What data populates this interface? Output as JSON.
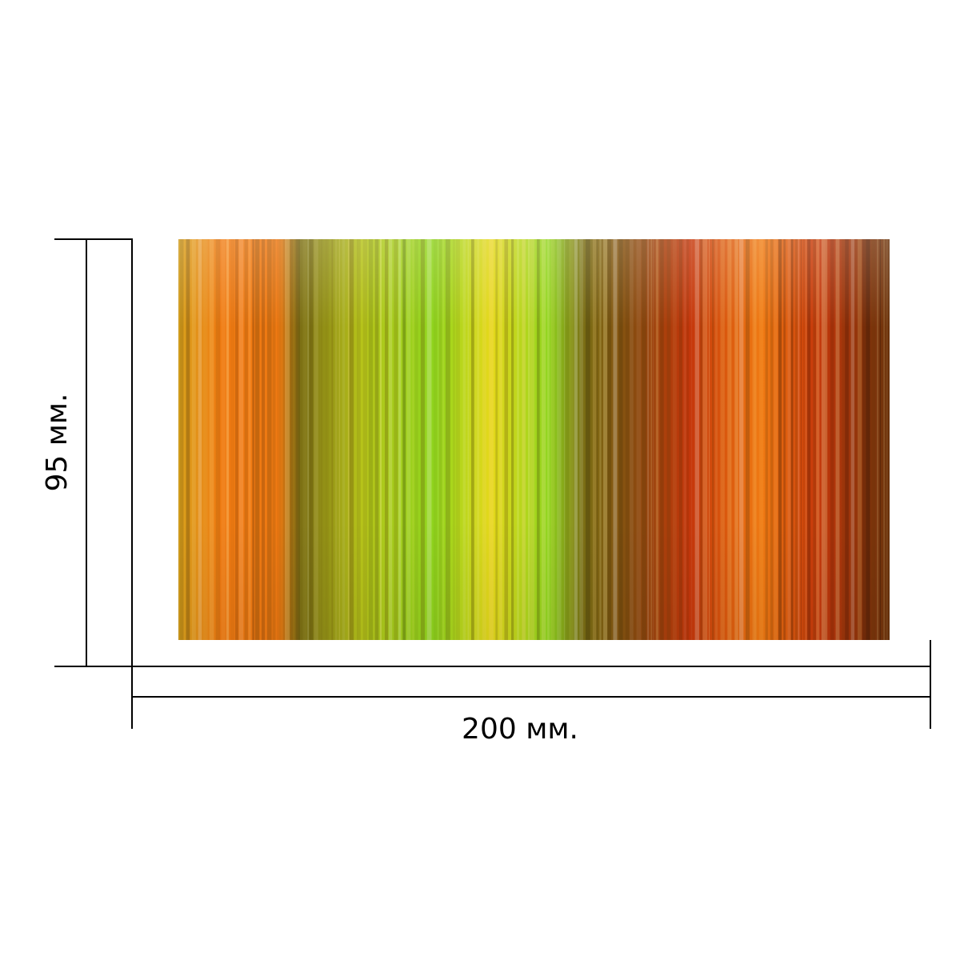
{
  "dimensions": {
    "width_label": "200 мм.",
    "height_label": "95 мм."
  },
  "tile": {
    "pattern": "vertical-color-stripes",
    "colors": {
      "amber": "#d9a21c",
      "orange": "#f07a12",
      "olive": "#7b6e14",
      "yellow_green": "#b8c61a",
      "lime": "#8fd51d",
      "yellow": "#e6d81b",
      "brown": "#8a4b0f",
      "red": "#c5360a",
      "dark_brown": "#6b340c"
    }
  },
  "line_color": "#000000"
}
